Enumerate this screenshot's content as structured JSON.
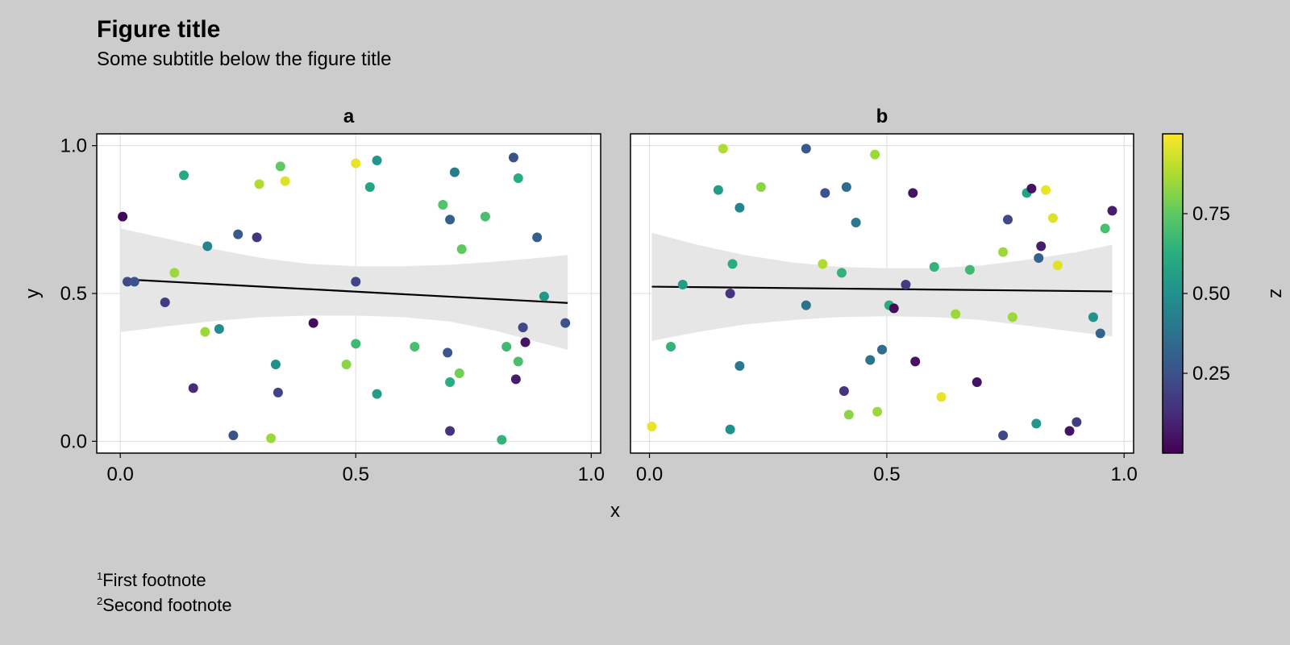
{
  "figure": {
    "title": "Figure title",
    "subtitle": "Some subtitle below the figure title",
    "footnotes": [
      {
        "marker": "1",
        "text": "First footnote"
      },
      {
        "marker": "2",
        "text": "Second footnote"
      }
    ]
  },
  "colors": {
    "background": "#cccccc",
    "axes_background": "#ffffff",
    "grid": "#dddddd",
    "fit_line": "#000000",
    "confidence_band": "#e6e6e6",
    "colormap": "viridis"
  },
  "chart_data": [
    {
      "type": "scatter",
      "title": "a",
      "xlabel": "x",
      "ylabel": "y",
      "xlim": [
        -0.05,
        1.02
      ],
      "ylim": [
        -0.04,
        1.04
      ],
      "xticks": [
        "0.0",
        "0.5",
        "1.0"
      ],
      "yticks": [
        "0.0",
        "0.5",
        "1.0"
      ],
      "grid": true,
      "fit": {
        "x": [
          0.03,
          0.95
        ],
        "y": [
          0.546,
          0.468
        ]
      },
      "band": {
        "x": [
          0.0,
          0.1,
          0.2,
          0.3,
          0.4,
          0.5,
          0.6,
          0.7,
          0.8,
          0.9,
          0.95
        ],
        "upper": [
          0.72,
          0.685,
          0.65,
          0.62,
          0.6,
          0.592,
          0.592,
          0.597,
          0.608,
          0.622,
          0.63
        ],
        "lower": [
          0.37,
          0.389,
          0.407,
          0.42,
          0.425,
          0.425,
          0.42,
          0.405,
          0.373,
          0.33,
          0.31
        ]
      },
      "points": [
        {
          "x": 0.005,
          "y": 0.76,
          "z": 0.02
        },
        {
          "x": 0.015,
          "y": 0.54,
          "z": 0.22
        },
        {
          "x": 0.03,
          "y": 0.54,
          "z": 0.25
        },
        {
          "x": 0.095,
          "y": 0.47,
          "z": 0.18
        },
        {
          "x": 0.115,
          "y": 0.57,
          "z": 0.85
        },
        {
          "x": 0.135,
          "y": 0.9,
          "z": 0.6
        },
        {
          "x": 0.155,
          "y": 0.18,
          "z": 0.12
        },
        {
          "x": 0.18,
          "y": 0.37,
          "z": 0.85
        },
        {
          "x": 0.185,
          "y": 0.66,
          "z": 0.45
        },
        {
          "x": 0.21,
          "y": 0.38,
          "z": 0.48
        },
        {
          "x": 0.24,
          "y": 0.02,
          "z": 0.25
        },
        {
          "x": 0.25,
          "y": 0.7,
          "z": 0.28
        },
        {
          "x": 0.29,
          "y": 0.69,
          "z": 0.15
        },
        {
          "x": 0.295,
          "y": 0.87,
          "z": 0.88
        },
        {
          "x": 0.32,
          "y": 0.01,
          "z": 0.85
        },
        {
          "x": 0.33,
          "y": 0.26,
          "z": 0.5
        },
        {
          "x": 0.335,
          "y": 0.165,
          "z": 0.2
        },
        {
          "x": 0.34,
          "y": 0.93,
          "z": 0.75
        },
        {
          "x": 0.35,
          "y": 0.88,
          "z": 0.95
        },
        {
          "x": 0.41,
          "y": 0.4,
          "z": 0.03
        },
        {
          "x": 0.5,
          "y": 0.94,
          "z": 0.97
        },
        {
          "x": 0.5,
          "y": 0.54,
          "z": 0.2
        },
        {
          "x": 0.5,
          "y": 0.33,
          "z": 0.68
        },
        {
          "x": 0.48,
          "y": 0.26,
          "z": 0.82
        },
        {
          "x": 0.53,
          "y": 0.86,
          "z": 0.58
        },
        {
          "x": 0.545,
          "y": 0.95,
          "z": 0.52
        },
        {
          "x": 0.545,
          "y": 0.16,
          "z": 0.55
        },
        {
          "x": 0.625,
          "y": 0.32,
          "z": 0.7
        },
        {
          "x": 0.685,
          "y": 0.8,
          "z": 0.72
        },
        {
          "x": 0.695,
          "y": 0.3,
          "z": 0.27
        },
        {
          "x": 0.7,
          "y": 0.2,
          "z": 0.62
        },
        {
          "x": 0.7,
          "y": 0.75,
          "z": 0.3
        },
        {
          "x": 0.7,
          "y": 0.035,
          "z": 0.14
        },
        {
          "x": 0.71,
          "y": 0.91,
          "z": 0.42
        },
        {
          "x": 0.72,
          "y": 0.23,
          "z": 0.78
        },
        {
          "x": 0.725,
          "y": 0.65,
          "z": 0.75
        },
        {
          "x": 0.775,
          "y": 0.76,
          "z": 0.7
        },
        {
          "x": 0.81,
          "y": 0.005,
          "z": 0.65
        },
        {
          "x": 0.82,
          "y": 0.32,
          "z": 0.68
        },
        {
          "x": 0.835,
          "y": 0.96,
          "z": 0.25
        },
        {
          "x": 0.84,
          "y": 0.21,
          "z": 0.08
        },
        {
          "x": 0.845,
          "y": 0.89,
          "z": 0.62
        },
        {
          "x": 0.845,
          "y": 0.27,
          "z": 0.7
        },
        {
          "x": 0.855,
          "y": 0.385,
          "z": 0.22
        },
        {
          "x": 0.86,
          "y": 0.335,
          "z": 0.05
        },
        {
          "x": 0.885,
          "y": 0.69,
          "z": 0.3
        },
        {
          "x": 0.9,
          "y": 0.49,
          "z": 0.52
        },
        {
          "x": 0.945,
          "y": 0.4,
          "z": 0.25
        }
      ]
    },
    {
      "type": "scatter",
      "title": "b",
      "xlabel": "x",
      "ylabel": "y",
      "xlim": [
        -0.04,
        1.02
      ],
      "ylim": [
        -0.04,
        1.04
      ],
      "xticks": [
        "0.0",
        "0.5",
        "1.0"
      ],
      "yticks": [
        "0.0",
        "0.5",
        "1.0"
      ],
      "grid": true,
      "fit": {
        "x": [
          0.005,
          0.975
        ],
        "y": [
          0.523,
          0.507
        ]
      },
      "band": {
        "x": [
          0.005,
          0.1,
          0.2,
          0.3,
          0.4,
          0.5,
          0.6,
          0.7,
          0.8,
          0.9,
          0.975
        ],
        "upper": [
          0.705,
          0.665,
          0.63,
          0.605,
          0.59,
          0.585,
          0.585,
          0.595,
          0.615,
          0.64,
          0.665
        ],
        "lower": [
          0.34,
          0.369,
          0.395,
          0.41,
          0.42,
          0.423,
          0.42,
          0.41,
          0.39,
          0.37,
          0.355
        ]
      },
      "points": [
        {
          "x": 0.005,
          "y": 0.05,
          "z": 0.97
        },
        {
          "x": 0.045,
          "y": 0.32,
          "z": 0.65
        },
        {
          "x": 0.07,
          "y": 0.53,
          "z": 0.55
        },
        {
          "x": 0.145,
          "y": 0.85,
          "z": 0.55
        },
        {
          "x": 0.155,
          "y": 0.99,
          "z": 0.88
        },
        {
          "x": 0.17,
          "y": 0.5,
          "z": 0.15
        },
        {
          "x": 0.17,
          "y": 0.04,
          "z": 0.5
        },
        {
          "x": 0.175,
          "y": 0.6,
          "z": 0.62
        },
        {
          "x": 0.19,
          "y": 0.79,
          "z": 0.45
        },
        {
          "x": 0.19,
          "y": 0.255,
          "z": 0.4
        },
        {
          "x": 0.235,
          "y": 0.86,
          "z": 0.82
        },
        {
          "x": 0.33,
          "y": 0.99,
          "z": 0.28
        },
        {
          "x": 0.33,
          "y": 0.46,
          "z": 0.38
        },
        {
          "x": 0.365,
          "y": 0.6,
          "z": 0.88
        },
        {
          "x": 0.37,
          "y": 0.84,
          "z": 0.25
        },
        {
          "x": 0.405,
          "y": 0.57,
          "z": 0.65
        },
        {
          "x": 0.41,
          "y": 0.17,
          "z": 0.15
        },
        {
          "x": 0.415,
          "y": 0.86,
          "z": 0.35
        },
        {
          "x": 0.42,
          "y": 0.09,
          "z": 0.82
        },
        {
          "x": 0.435,
          "y": 0.74,
          "z": 0.4
        },
        {
          "x": 0.465,
          "y": 0.275,
          "z": 0.38
        },
        {
          "x": 0.475,
          "y": 0.97,
          "z": 0.85
        },
        {
          "x": 0.48,
          "y": 0.1,
          "z": 0.85
        },
        {
          "x": 0.49,
          "y": 0.31,
          "z": 0.35
        },
        {
          "x": 0.505,
          "y": 0.46,
          "z": 0.62
        },
        {
          "x": 0.515,
          "y": 0.45,
          "z": 0.03
        },
        {
          "x": 0.54,
          "y": 0.53,
          "z": 0.18
        },
        {
          "x": 0.555,
          "y": 0.84,
          "z": 0.05
        },
        {
          "x": 0.56,
          "y": 0.27,
          "z": 0.05
        },
        {
          "x": 0.6,
          "y": 0.59,
          "z": 0.65
        },
        {
          "x": 0.615,
          "y": 0.15,
          "z": 0.97
        },
        {
          "x": 0.645,
          "y": 0.43,
          "z": 0.85
        },
        {
          "x": 0.675,
          "y": 0.58,
          "z": 0.68
        },
        {
          "x": 0.69,
          "y": 0.2,
          "z": 0.05
        },
        {
          "x": 0.745,
          "y": 0.02,
          "z": 0.22
        },
        {
          "x": 0.745,
          "y": 0.64,
          "z": 0.85
        },
        {
          "x": 0.755,
          "y": 0.75,
          "z": 0.22
        },
        {
          "x": 0.765,
          "y": 0.42,
          "z": 0.85
        },
        {
          "x": 0.795,
          "y": 0.84,
          "z": 0.58
        },
        {
          "x": 0.805,
          "y": 0.855,
          "z": 0.05
        },
        {
          "x": 0.815,
          "y": 0.06,
          "z": 0.52
        },
        {
          "x": 0.82,
          "y": 0.62,
          "z": 0.32
        },
        {
          "x": 0.825,
          "y": 0.66,
          "z": 0.08
        },
        {
          "x": 0.835,
          "y": 0.85,
          "z": 0.97
        },
        {
          "x": 0.85,
          "y": 0.755,
          "z": 0.95
        },
        {
          "x": 0.86,
          "y": 0.595,
          "z": 0.95
        },
        {
          "x": 0.885,
          "y": 0.035,
          "z": 0.05
        },
        {
          "x": 0.9,
          "y": 0.065,
          "z": 0.18
        },
        {
          "x": 0.935,
          "y": 0.42,
          "z": 0.5
        },
        {
          "x": 0.95,
          "y": 0.365,
          "z": 0.32
        },
        {
          "x": 0.96,
          "y": 0.72,
          "z": 0.7
        },
        {
          "x": 0.975,
          "y": 0.78,
          "z": 0.08
        }
      ]
    }
  ],
  "colorbar": {
    "label": "z",
    "range": [
      0.0,
      1.0
    ],
    "ticks": [
      {
        "value": 0.25,
        "label": "0.25"
      },
      {
        "value": 0.5,
        "label": "0.50"
      },
      {
        "value": 0.75,
        "label": "0.75"
      }
    ]
  }
}
